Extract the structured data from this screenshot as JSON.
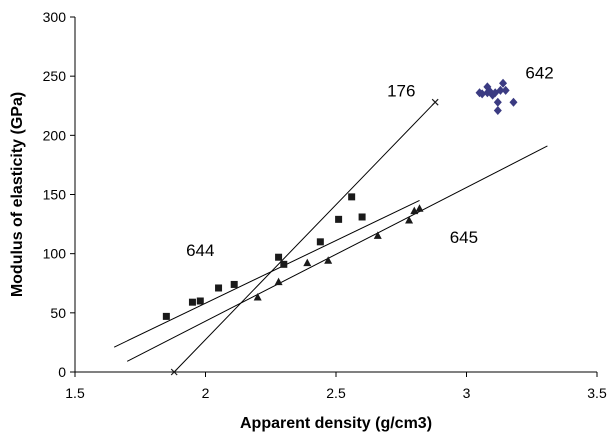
{
  "chart_data": {
    "type": "scatter",
    "title": "",
    "xlabel": "Apparent density (g/cm3)",
    "ylabel": "Modulus of elasticity (GPa)",
    "xlim": [
      1.5,
      3.5
    ],
    "ylim": [
      0,
      300
    ],
    "xticks": [
      1.5,
      2,
      2.5,
      3,
      3.5
    ],
    "xtick_labels": [
      "1.5",
      "2",
      "2.5",
      "3",
      "3.5"
    ],
    "yticks": [
      0,
      50,
      100,
      150,
      200,
      250,
      300
    ],
    "ytick_labels": [
      "0",
      "50",
      "100",
      "150",
      "200",
      "250",
      "300"
    ],
    "grid": false,
    "legend": "none",
    "series": [
      {
        "label": "644",
        "marker": "square",
        "color": "#1a1a1a",
        "x": [
          1.85,
          1.95,
          1.98,
          2.05,
          2.11,
          2.28,
          2.3,
          2.44,
          2.51,
          2.56,
          2.6
        ],
        "y": [
          47,
          59,
          60,
          71,
          74,
          97,
          91,
          110,
          129,
          148,
          131
        ],
        "fit": {
          "x": [
            1.65,
            2.82
          ],
          "y": [
            21,
            145
          ]
        }
      },
      {
        "label": "645",
        "marker": "triangle",
        "color": "#1a1a1a",
        "x": [
          2.2,
          2.28,
          2.39,
          2.47,
          2.66,
          2.78,
          2.8,
          2.82
        ],
        "y": [
          63,
          76,
          92,
          94,
          115,
          128,
          136,
          138
        ],
        "fit": {
          "x": [
            1.7,
            3.31
          ],
          "y": [
            9,
            191
          ]
        }
      },
      {
        "label": "176",
        "marker": "x",
        "color": "#1a1a1a",
        "x": [
          1.88,
          2.88
        ],
        "y": [
          0,
          228
        ],
        "fit": {
          "x": [
            1.88,
            2.88
          ],
          "y": [
            0,
            228
          ]
        }
      },
      {
        "label": "642",
        "marker": "diamond",
        "color": "#3b3b82",
        "x": [
          3.06,
          3.08,
          3.08,
          3.1,
          3.11,
          3.12,
          3.12,
          3.13,
          3.14,
          3.15,
          3.18,
          3.05,
          3.09
        ],
        "y": [
          235,
          241,
          236,
          234,
          236,
          228,
          221,
          238,
          244,
          238,
          228,
          236,
          237
        ]
      }
    ],
    "annotations": [
      {
        "text": "176",
        "x": 2.75,
        "y": 233
      },
      {
        "text": "642",
        "x": 3.28,
        "y": 248
      },
      {
        "text": "644",
        "x": 1.98,
        "y": 98
      },
      {
        "text": "645",
        "x": 2.99,
        "y": 109
      }
    ]
  }
}
